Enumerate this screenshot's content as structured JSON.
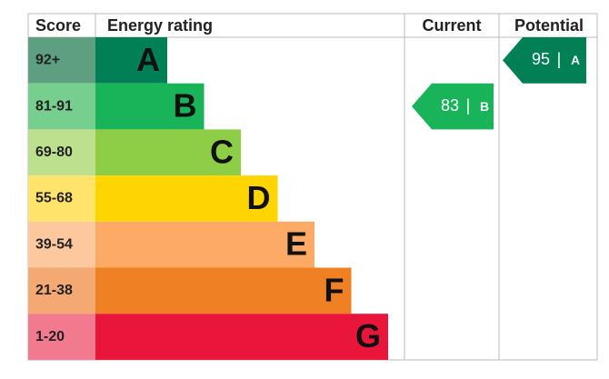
{
  "header": {
    "score": "Score",
    "rating": "Energy rating",
    "current": "Current",
    "potential": "Potential"
  },
  "bands": [
    {
      "score": "92+",
      "letter": "A",
      "color": "#008054",
      "light": "#5e9f82"
    },
    {
      "score": "81-91",
      "letter": "B",
      "color": "#19b459",
      "light": "#76cf8f"
    },
    {
      "score": "69-80",
      "letter": "C",
      "color": "#8dce46",
      "light": "#bde08f"
    },
    {
      "score": "55-68",
      "letter": "D",
      "color": "#ffd500",
      "light": "#ffe36a"
    },
    {
      "score": "39-54",
      "letter": "E",
      "color": "#fcaa65",
      "light": "#fdc89d"
    },
    {
      "score": "21-38",
      "letter": "F",
      "color": "#ef8023",
      "light": "#f4a972"
    },
    {
      "score": "1-20",
      "letter": "G",
      "color": "#e9153b",
      "light": "#f27a8f"
    }
  ],
  "current": {
    "value": 83,
    "letter": "B"
  },
  "potential": {
    "value": 95,
    "letter": "A"
  }
}
